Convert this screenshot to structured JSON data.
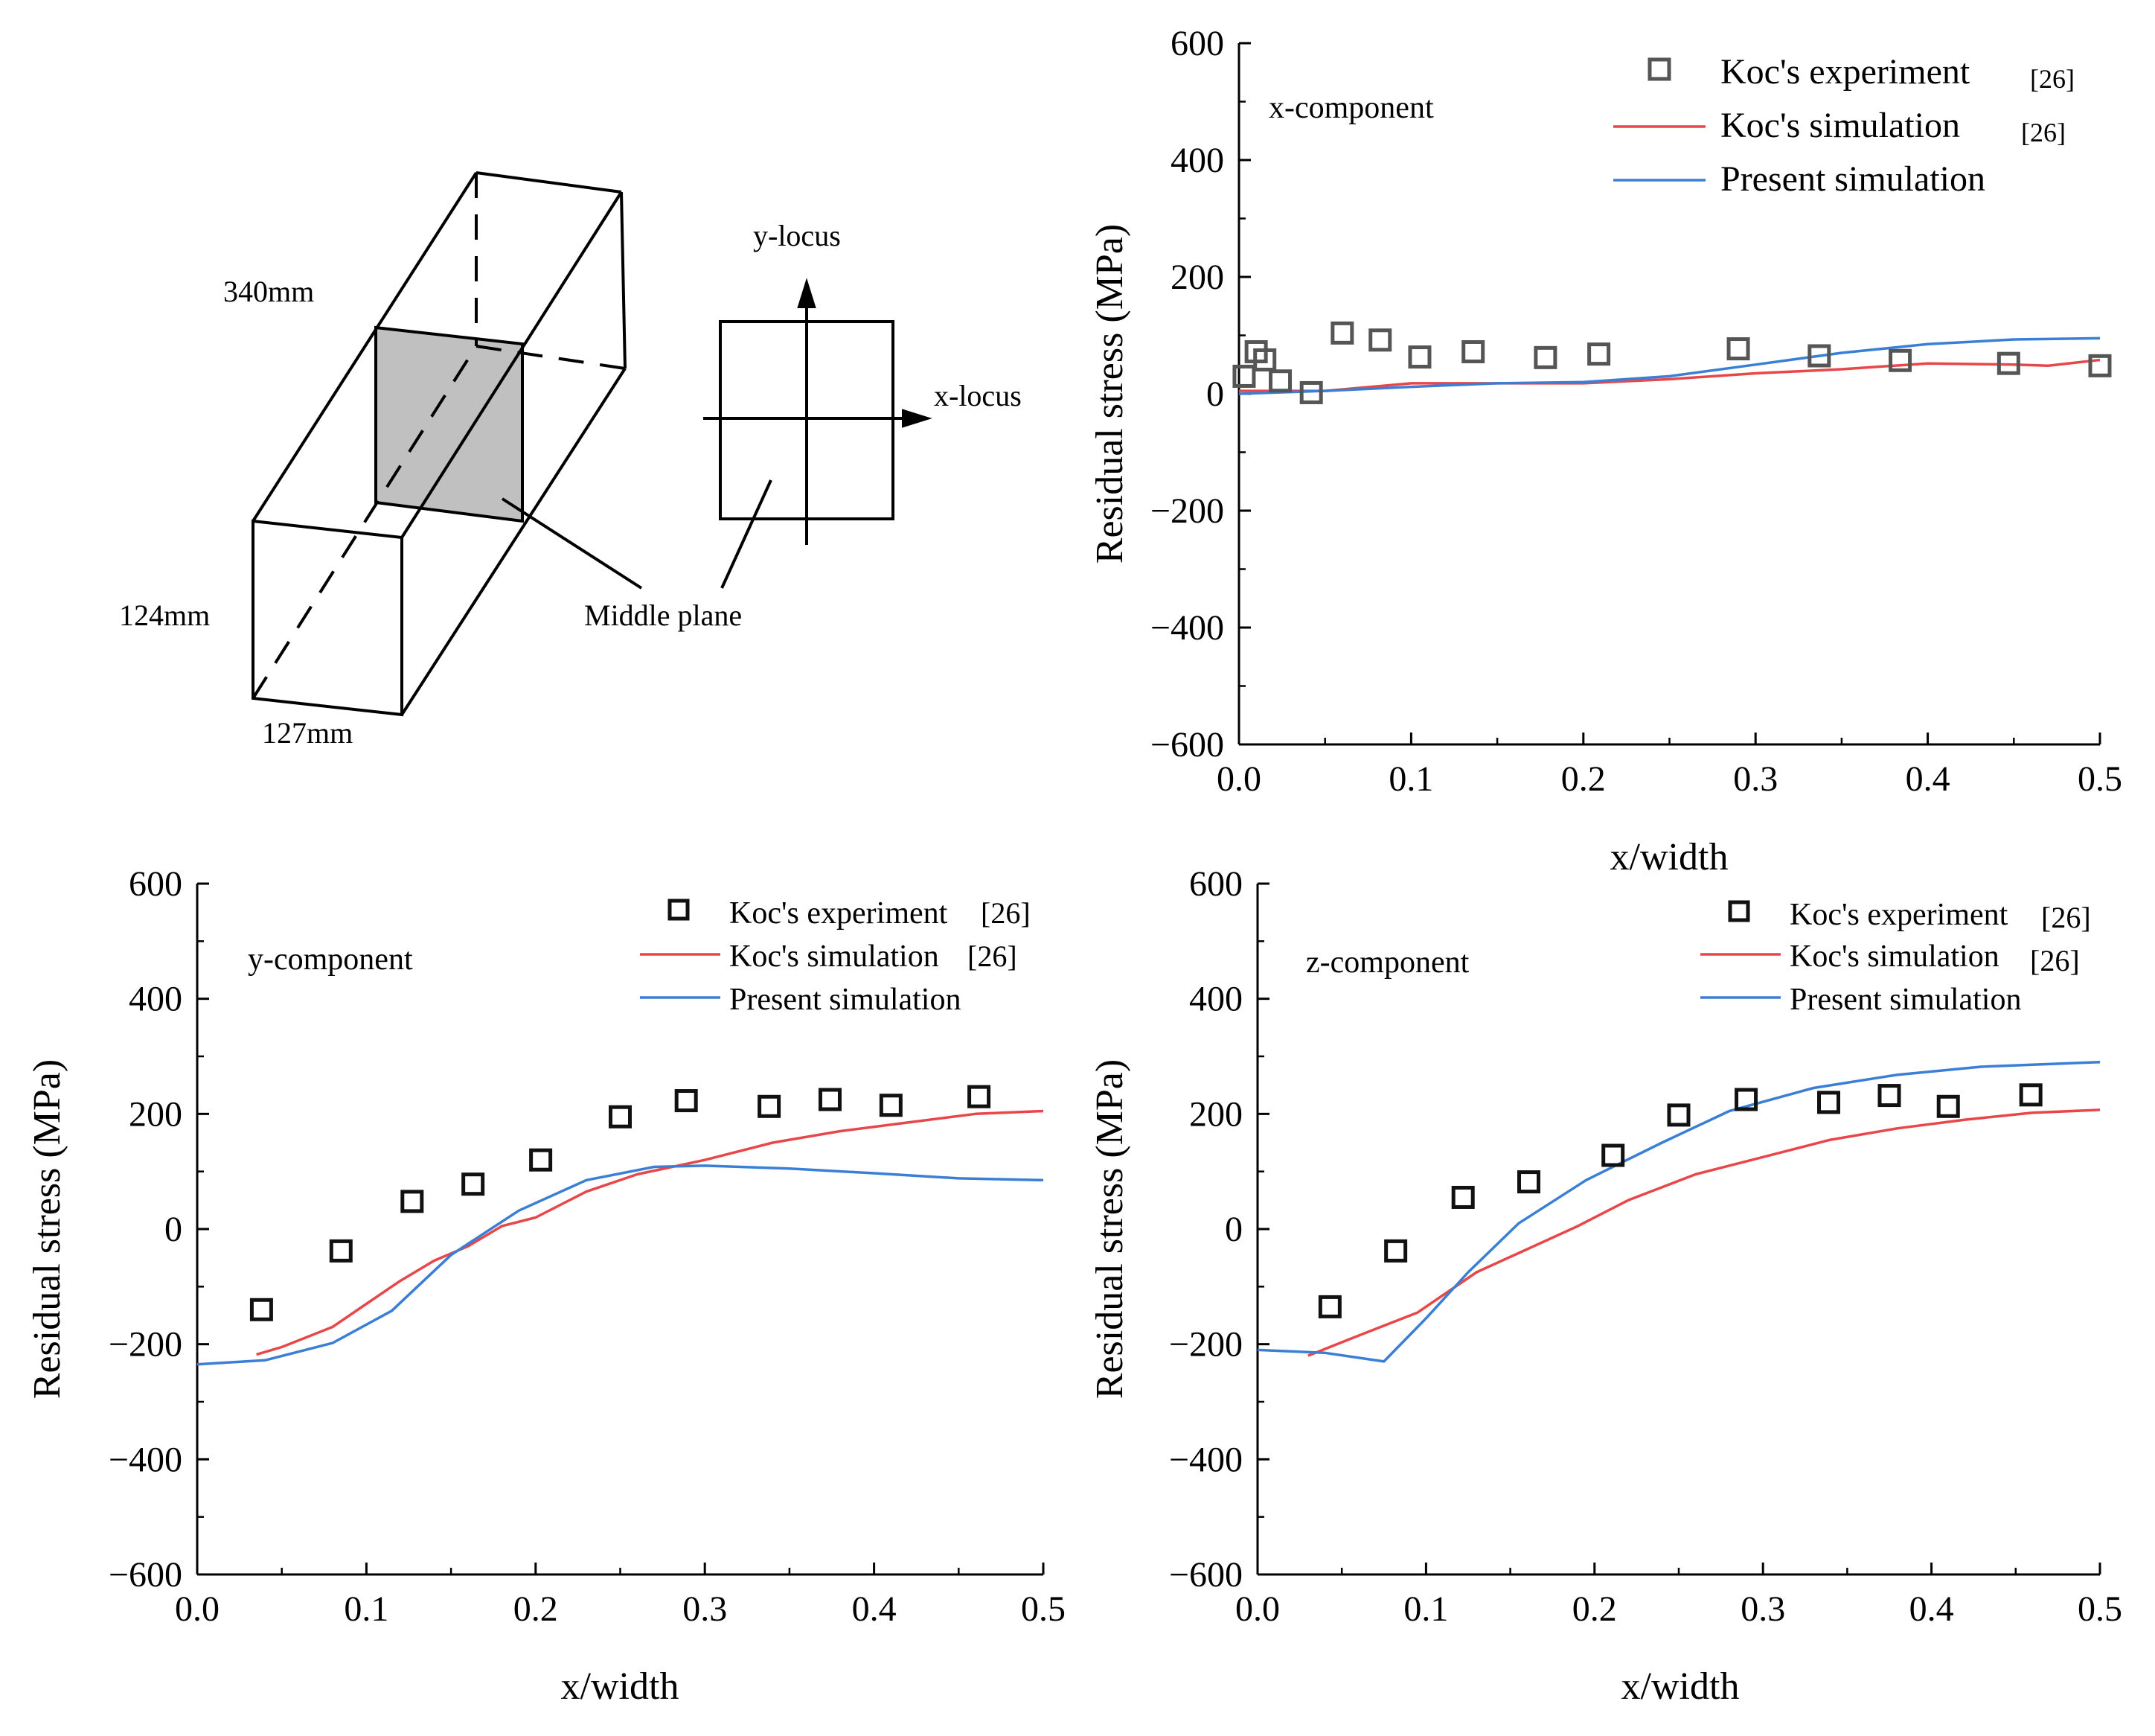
{
  "diagram": {
    "dim_length": "340mm",
    "dim_height": "124mm",
    "dim_width": "127mm",
    "middle_plane_label": "Middle plane",
    "y_locus_label": "y-locus",
    "x_locus_label": "x-locus",
    "plane_fill_color": "#c0c0c0"
  },
  "colors": {
    "koc_sim": "#e8474a",
    "present_sim": "#3a7fd5",
    "exp_top": "#555555",
    "exp_bottom": "#111111"
  },
  "chart_data": [
    {
      "type": "line",
      "component_label": "x-component",
      "xlabel": "x/width",
      "ylabel": "Residual stress (MPa)",
      "xlim": [
        0,
        0.5
      ],
      "ylim": [
        -600,
        600
      ],
      "xticks": [
        "0.0",
        "0.1",
        "0.2",
        "0.3",
        "0.4",
        "0.5"
      ],
      "yticks": [
        "600",
        "400",
        "200",
        "0",
        "−200",
        "−400",
        "−600"
      ],
      "legend": [
        {
          "label": "Koc's experiment",
          "ref": "[26]",
          "kind": "marker"
        },
        {
          "label": "Koc's simulation",
          "ref": "[26]",
          "kind": "koc"
        },
        {
          "label": "Present simulation",
          "ref": "",
          "kind": "present"
        }
      ],
      "experiment": {
        "x": [
          0.003,
          0.01,
          0.015,
          0.024,
          0.042,
          0.06,
          0.082,
          0.105,
          0.136,
          0.178,
          0.209,
          0.29,
          0.337,
          0.384,
          0.447,
          0.5
        ],
        "y": [
          30,
          72,
          58,
          22,
          2,
          104,
          92,
          63,
          72,
          62,
          68,
          77,
          65,
          57,
          52,
          48
        ]
      },
      "koc_simulation": {
        "x": [
          0,
          0.05,
          0.1,
          0.15,
          0.2,
          0.25,
          0.3,
          0.35,
          0.4,
          0.45,
          0.47,
          0.5
        ],
        "y": [
          5,
          5,
          18,
          18,
          18,
          25,
          35,
          42,
          52,
          50,
          48,
          58
        ]
      },
      "present_simulation": {
        "x": [
          0,
          0.05,
          0.1,
          0.15,
          0.2,
          0.25,
          0.3,
          0.35,
          0.4,
          0.45,
          0.5
        ],
        "y": [
          0,
          5,
          12,
          18,
          20,
          30,
          50,
          70,
          85,
          93,
          95
        ]
      }
    },
    {
      "type": "line",
      "component_label": "y-component",
      "xlabel": "x/width",
      "ylabel": "Residual stress (MPa)",
      "xlim": [
        0,
        0.5
      ],
      "ylim": [
        -600,
        600
      ],
      "xticks": [
        "0.0",
        "0.1",
        "0.2",
        "0.3",
        "0.4",
        "0.5"
      ],
      "yticks": [
        "600",
        "400",
        "200",
        "0",
        "−200",
        "−400",
        "−600"
      ],
      "legend": [
        {
          "label": "Koc's experiment",
          "ref": "[26]",
          "kind": "marker"
        },
        {
          "label": "Koc's simulation",
          "ref": "[26]",
          "kind": "koc"
        },
        {
          "label": "Present simulation",
          "ref": "",
          "kind": "present"
        }
      ],
      "experiment": {
        "x": [
          0.038,
          0.085,
          0.127,
          0.163,
          0.203,
          0.25,
          0.289,
          0.338,
          0.374,
          0.41,
          0.462
        ],
        "y": [
          -140,
          -38,
          48,
          78,
          120,
          195,
          223,
          213,
          225,
          215,
          230
        ]
      },
      "koc_simulation": {
        "x": [
          0.035,
          0.05,
          0.08,
          0.1,
          0.12,
          0.14,
          0.16,
          0.18,
          0.2,
          0.23,
          0.26,
          0.3,
          0.34,
          0.38,
          0.42,
          0.46,
          0.5
        ],
        "y": [
          -218,
          -205,
          -170,
          -130,
          -90,
          -55,
          -30,
          5,
          20,
          65,
          95,
          120,
          150,
          170,
          185,
          200,
          205
        ]
      },
      "present_simulation": {
        "x": [
          0,
          0.04,
          0.08,
          0.115,
          0.15,
          0.19,
          0.23,
          0.27,
          0.3,
          0.35,
          0.4,
          0.45,
          0.5
        ],
        "y": [
          -235,
          -228,
          -198,
          -142,
          -45,
          32,
          85,
          108,
          110,
          105,
          97,
          88,
          85
        ]
      }
    },
    {
      "type": "line",
      "component_label": "z-component",
      "xlabel": "x/width",
      "ylabel": "Residual stress (MPa)",
      "xlim": [
        0,
        0.5
      ],
      "ylim": [
        -600,
        600
      ],
      "xticks": [
        "0.0",
        "0.1",
        "0.2",
        "0.3",
        "0.4",
        "0.5"
      ],
      "yticks": [
        "600",
        "400",
        "200",
        "0",
        "−200",
        "−400",
        "−600"
      ],
      "legend": [
        {
          "label": "Koc's experiment",
          "ref": "[26]",
          "kind": "marker"
        },
        {
          "label": "Koc's simulation",
          "ref": "[26]",
          "kind": "koc"
        },
        {
          "label": "Present simulation",
          "ref": "",
          "kind": "present"
        }
      ],
      "experiment": {
        "x": [
          0.043,
          0.082,
          0.122,
          0.161,
          0.211,
          0.25,
          0.29,
          0.339,
          0.375,
          0.41,
          0.459
        ],
        "y": [
          -135,
          -38,
          55,
          82,
          128,
          198,
          225,
          220,
          232,
          213,
          233
        ]
      },
      "koc_simulation": {
        "x": [
          0.03,
          0.06,
          0.095,
          0.13,
          0.16,
          0.19,
          0.22,
          0.26,
          0.3,
          0.34,
          0.38,
          0.42,
          0.46,
          0.5
        ],
        "y": [
          -220,
          -185,
          -145,
          -75,
          -35,
          5,
          50,
          95,
          125,
          155,
          175,
          190,
          202,
          207
        ]
      },
      "present_simulation": {
        "x": [
          0,
          0.04,
          0.075,
          0.1,
          0.125,
          0.155,
          0.195,
          0.24,
          0.28,
          0.33,
          0.38,
          0.43,
          0.5
        ],
        "y": [
          -210,
          -215,
          -230,
          -155,
          -75,
          10,
          85,
          150,
          205,
          245,
          268,
          282,
          290
        ]
      }
    }
  ]
}
